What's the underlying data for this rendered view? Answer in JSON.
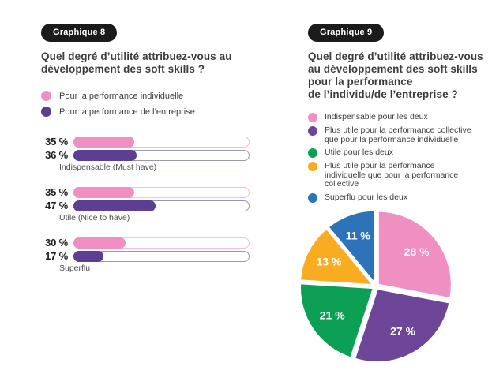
{
  "colors": {
    "badge_bg": "#1b1b1b",
    "badge_text": "#ffffff",
    "title_text": "#3c3c3c",
    "value_label_text": "#1f1f1f",
    "category_label_text": "#4d4d4d",
    "pie_label_text": "#ffffff"
  },
  "chart_data": [
    {
      "type": "bar",
      "badge": "Graphique 8",
      "title": "Quel degré d’utilité attribuez-vous au développement des soft skills ?",
      "title_lines": [
        "Quel degré d’utilité attribuez-vous au",
        "développement des soft skills ?"
      ],
      "categories": [
        "Indispensable (Must have)",
        "Utile (Nice to have)",
        "Superflu"
      ],
      "series": [
        {
          "name": "Pour la performance individuelle",
          "color": "#ef8fc2",
          "track_border": "#f2bfdc",
          "values": [
            35,
            35,
            30
          ]
        },
        {
          "name": "Pour la performance de l’entreprise",
          "color": "#5c3e92",
          "track_border": "#9d96b1",
          "values": [
            36,
            47,
            17
          ]
        }
      ],
      "value_suffix": " %",
      "xlim": [
        0,
        100
      ],
      "legend_position": "top"
    },
    {
      "type": "pie",
      "badge": "Graphique 9",
      "title": "Quel degré d’utilité attribuez-vous au développement des soft skills pour la performance de l’individu/de l’entreprise ?",
      "title_lines": [
        "Quel degré d’utilité attribuez-vous",
        "au développement des soft skills",
        "pour la performance",
        "de l’individu/de l’entreprise ?"
      ],
      "start_angle_deg": 0,
      "direction": "clockwise",
      "label_suffix": " %",
      "legend_position": "top",
      "slices": [
        {
          "label": "Indispensable pour les deux",
          "label_lines": [
            "Indispensable pour les deux"
          ],
          "value": 28,
          "color": "#ef8fc2"
        },
        {
          "label": "Plus utile pour la performance collective que pour la performance individuelle",
          "label_lines": [
            "Plus utile pour la performance collective",
            "que pour la performance individuelle"
          ],
          "value": 27,
          "color": "#6e4699"
        },
        {
          "label": "Utile pour les deux",
          "label_lines": [
            "Utile pour les deux"
          ],
          "value": 21,
          "color": "#0ba053"
        },
        {
          "label": "Plus utile pour la performance individuelle que pour la performance collective",
          "label_lines": [
            "Plus utile pour la performance",
            "individuelle que pour la performance",
            "collective"
          ],
          "value": 13,
          "color": "#f8ac1f"
        },
        {
          "label": "Superflu pour les deux",
          "label_lines": [
            "Superflu pour les deux"
          ],
          "value": 11,
          "color": "#2c73b9"
        }
      ]
    }
  ]
}
